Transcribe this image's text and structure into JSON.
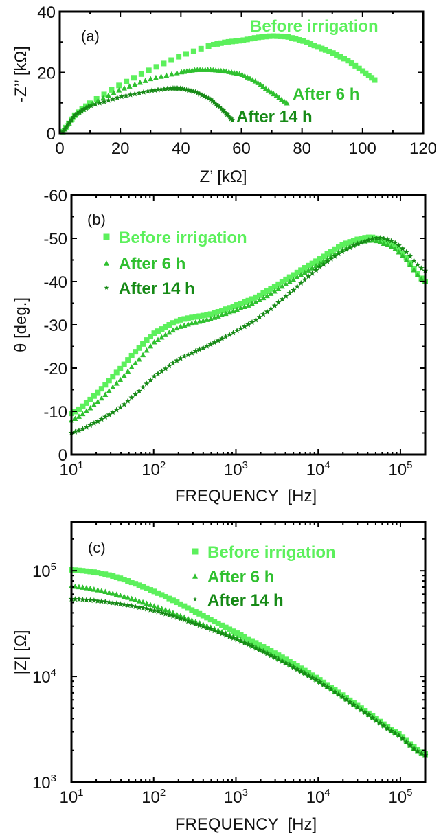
{
  "series_styles": [
    {
      "name": "Before irrigation",
      "color": "#5cf05c",
      "marker": "square"
    },
    {
      "name": "After 6 h",
      "color": "#2fc02f",
      "marker": "triangle"
    },
    {
      "name": "After 14 h",
      "color": "#168a16",
      "marker": "star"
    }
  ],
  "chart_data": [
    {
      "id": "a",
      "type": "scatter",
      "panel_label": "(a)",
      "title": "",
      "xlabel": "Z’ [kΩ]",
      "ylabel": "-Z’’ [kΩ]",
      "xlim": [
        0,
        120
      ],
      "ylim": [
        0,
        40
      ],
      "xticks": [
        0,
        20,
        40,
        60,
        80,
        100,
        120
      ],
      "yticks": [
        0,
        20,
        40
      ],
      "xtick_labels": [
        "0",
        "20",
        "40",
        "60",
        "80",
        "100",
        "120"
      ],
      "ytick_labels": [
        "0",
        "20",
        "40"
      ],
      "legend": "inline-labels",
      "annotations": [
        "Before irrigation",
        "After 6 h",
        "After 14 h"
      ],
      "series": [
        {
          "name": "Before irrigation",
          "x": [
            1,
            5,
            10,
            20,
            30,
            40,
            50,
            55,
            60,
            65,
            70,
            75,
            80,
            85,
            90,
            95,
            100,
            104
          ],
          "y": [
            0.5,
            6,
            10,
            16,
            21,
            25.5,
            29,
            30,
            30.5,
            31.5,
            32,
            31.8,
            30.5,
            28.5,
            26.5,
            24,
            20.5,
            17.5
          ]
        },
        {
          "name": "After 6 h",
          "x": [
            1,
            5,
            10,
            20,
            30,
            40,
            45,
            50,
            55,
            60,
            65,
            70,
            75
          ],
          "y": [
            0.5,
            6,
            9.5,
            14.5,
            18,
            20.2,
            21,
            21,
            20.5,
            19.5,
            17,
            13.5,
            10
          ]
        },
        {
          "name": "After 14 h",
          "x": [
            1,
            5,
            10,
            20,
            30,
            37,
            40,
            45,
            50,
            54,
            57
          ],
          "y": [
            0.5,
            6,
            9,
            12,
            14,
            14.8,
            14.7,
            13.5,
            11,
            7.5,
            4.3
          ]
        }
      ]
    },
    {
      "id": "b",
      "type": "scatter",
      "panel_label": "(b)",
      "title": "",
      "xlabel": "FREQUENCY  [Hz]",
      "ylabel": "θ [deg.]",
      "xscale": "log",
      "xlim": [
        10,
        200000
      ],
      "ylim": [
        0,
        -60
      ],
      "xticks": [
        10,
        100,
        1000,
        10000,
        100000
      ],
      "xtick_labels": [
        [
          "10",
          "1"
        ],
        [
          "10",
          "2"
        ],
        [
          "10",
          "3"
        ],
        [
          "10",
          "4"
        ],
        [
          "10",
          "5"
        ]
      ],
      "yticks": [
        0,
        -10,
        -20,
        -30,
        -40,
        -50,
        -60
      ],
      "ytick_labels": [
        "0",
        "-10",
        "-20",
        "-30",
        "-40",
        "-50",
        "-60"
      ],
      "legend": "top-left",
      "series": [
        {
          "name": "Before irrigation",
          "x": [
            10,
            20,
            40,
            70,
            100,
            200,
            500,
            1000,
            2000,
            5000,
            10000,
            20000,
            40000,
            60000,
            100000,
            200000
          ],
          "y": [
            -9.5,
            -14,
            -20,
            -25,
            -28,
            -31,
            -32.5,
            -34.5,
            -37,
            -41.5,
            -45,
            -48.5,
            -50.2,
            -49.5,
            -47,
            -40
          ]
        },
        {
          "name": "After 6 h",
          "x": [
            10,
            20,
            40,
            70,
            100,
            200,
            500,
            1000,
            2000,
            5000,
            10000,
            20000,
            40000,
            60000,
            100000,
            200000
          ],
          "y": [
            -8,
            -12,
            -17.5,
            -22.5,
            -26,
            -29.5,
            -31.5,
            -33.5,
            -36,
            -40.5,
            -44,
            -47.5,
            -49.5,
            -49,
            -46.5,
            -40
          ]
        },
        {
          "name": "After 14 h",
          "x": [
            10,
            20,
            40,
            70,
            100,
            200,
            500,
            1000,
            2000,
            5000,
            10000,
            20000,
            40000,
            60000,
            100000,
            200000
          ],
          "y": [
            -5,
            -7.5,
            -11,
            -15,
            -18,
            -22,
            -25.5,
            -28.5,
            -32,
            -38,
            -43,
            -47,
            -49.5,
            -50,
            -48,
            -42.5
          ]
        }
      ]
    },
    {
      "id": "c",
      "type": "scatter",
      "panel_label": "(c)",
      "title": "",
      "xlabel": "FREQUENCY  [Hz]",
      "ylabel": "|Z| [Ω]",
      "xscale": "log",
      "yscale": "log",
      "xlim": [
        10,
        200000
      ],
      "ylim": [
        1000,
        290000
      ],
      "xticks": [
        10,
        100,
        1000,
        10000,
        100000
      ],
      "xtick_labels": [
        [
          "10",
          "1"
        ],
        [
          "10",
          "2"
        ],
        [
          "10",
          "3"
        ],
        [
          "10",
          "4"
        ],
        [
          "10",
          "5"
        ]
      ],
      "yticks": [
        1000,
        10000,
        100000
      ],
      "ytick_labels": [
        [
          "10",
          "3"
        ],
        [
          "10",
          "4"
        ],
        [
          "10",
          "5"
        ]
      ],
      "legend": "top-center",
      "series": [
        {
          "name": "Before irrigation",
          "x": [
            10,
            30,
            100,
            300,
            1000,
            3000,
            10000,
            30000,
            100000,
            200000
          ],
          "y": [
            102000,
            90000,
            64000,
            42000,
            26000,
            16500,
            9500,
            5300,
            2800,
            1850
          ]
        },
        {
          "name": "After 6 h",
          "x": [
            10,
            30,
            100,
            300,
            1000,
            3000,
            10000,
            30000,
            100000,
            200000
          ],
          "y": [
            72000,
            62000,
            47000,
            34000,
            23500,
            15500,
            9200,
            5200,
            2750,
            1800
          ]
        },
        {
          "name": "After 14 h",
          "x": [
            10,
            30,
            100,
            300,
            1000,
            3000,
            10000,
            30000,
            100000,
            200000
          ],
          "y": [
            54000,
            50000,
            42000,
            32000,
            22500,
            15000,
            9000,
            5100,
            2700,
            1800
          ]
        }
      ]
    }
  ]
}
